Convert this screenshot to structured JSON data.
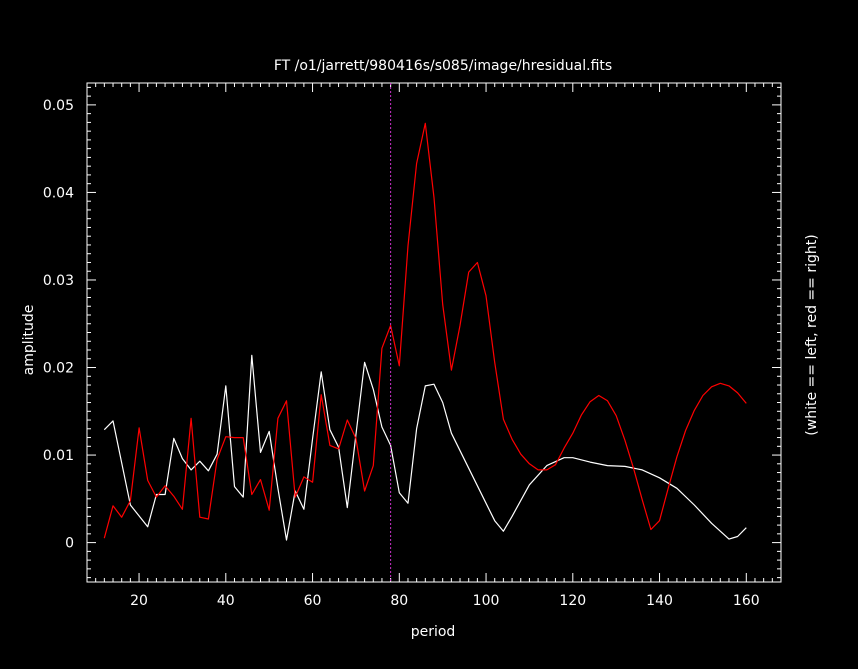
{
  "chart_data": {
    "type": "line",
    "title": "FT  /o1/jarrett/980416s/s085/image/hresidual.fits",
    "xlabel": "period",
    "ylabel": "amplitude",
    "right_label": "(white == left, red == right)",
    "xlim": [
      8,
      168
    ],
    "ylim": [
      -0.0045,
      0.0525
    ],
    "x_ticks": [
      20,
      40,
      60,
      80,
      100,
      120,
      140,
      160
    ],
    "x_tick_labels": [
      "20",
      "40",
      "60",
      "80",
      "100",
      "120",
      "140",
      "160"
    ],
    "y_ticks": [
      0,
      0.01,
      0.02,
      0.03,
      0.04,
      0.05
    ],
    "y_tick_labels": [
      "0",
      "0.01",
      "0.02",
      "0.03",
      "0.04",
      "0.05"
    ],
    "vline_x": 78,
    "colors": {
      "background": "#000000",
      "axes": "#ffffff",
      "vline": "#cc33cc"
    },
    "series": [
      {
        "color": "#ffffff",
        "points": [
          [
            12,
            0.0129
          ],
          [
            14,
            0.0139
          ],
          [
            18,
            0.0043
          ],
          [
            22,
            0.0018
          ],
          [
            24,
            0.0055
          ],
          [
            26,
            0.0055
          ],
          [
            28,
            0.0119
          ],
          [
            30,
            0.0096
          ],
          [
            32,
            0.0083
          ],
          [
            34,
            0.0093
          ],
          [
            36,
            0.0082
          ],
          [
            38,
            0.0101
          ],
          [
            40,
            0.0179
          ],
          [
            42,
            0.0064
          ],
          [
            44,
            0.0052
          ],
          [
            46,
            0.0214
          ],
          [
            48,
            0.0103
          ],
          [
            50,
            0.0127
          ],
          [
            52,
            0.0062
          ],
          [
            54,
            0.0003
          ],
          [
            56,
            0.0059
          ],
          [
            58,
            0.0038
          ],
          [
            60,
            0.0119
          ],
          [
            62,
            0.0195
          ],
          [
            64,
            0.0129
          ],
          [
            66,
            0.0109
          ],
          [
            68,
            0.004
          ],
          [
            70,
            0.0123
          ],
          [
            72,
            0.0206
          ],
          [
            74,
            0.0175
          ],
          [
            76,
            0.0132
          ],
          [
            78,
            0.0111
          ],
          [
            80,
            0.0057
          ],
          [
            82,
            0.0045
          ],
          [
            84,
            0.013
          ],
          [
            86,
            0.0179
          ],
          [
            88,
            0.0181
          ],
          [
            90,
            0.016
          ],
          [
            92,
            0.0125
          ],
          [
            96,
            0.0085
          ],
          [
            100,
            0.0045
          ],
          [
            102,
            0.0025
          ],
          [
            104,
            0.0013
          ],
          [
            106,
            0.003
          ],
          [
            110,
            0.0066
          ],
          [
            114,
            0.0088
          ],
          [
            118,
            0.0097
          ],
          [
            120,
            0.0097
          ],
          [
            124,
            0.0092
          ],
          [
            128,
            0.0088
          ],
          [
            132,
            0.0087
          ],
          [
            136,
            0.0083
          ],
          [
            140,
            0.0074
          ],
          [
            144,
            0.0062
          ],
          [
            148,
            0.0043
          ],
          [
            152,
            0.0022
          ],
          [
            156,
            0.0004
          ],
          [
            158,
            0.0007
          ],
          [
            160,
            0.0017
          ]
        ]
      },
      {
        "color": "#ff0000",
        "points": [
          [
            12,
            0.0005
          ],
          [
            14,
            0.0042
          ],
          [
            16,
            0.0029
          ],
          [
            18,
            0.0048
          ],
          [
            20,
            0.0131
          ],
          [
            22,
            0.0071
          ],
          [
            24,
            0.0052
          ],
          [
            26,
            0.0065
          ],
          [
            28,
            0.0053
          ],
          [
            30,
            0.0038
          ],
          [
            32,
            0.0142
          ],
          [
            34,
            0.0029
          ],
          [
            36,
            0.0027
          ],
          [
            38,
            0.0095
          ],
          [
            40,
            0.0121
          ],
          [
            42,
            0.012
          ],
          [
            44,
            0.012
          ],
          [
            46,
            0.0055
          ],
          [
            48,
            0.0072
          ],
          [
            50,
            0.0037
          ],
          [
            52,
            0.0142
          ],
          [
            54,
            0.0162
          ],
          [
            56,
            0.0052
          ],
          [
            58,
            0.0075
          ],
          [
            60,
            0.0069
          ],
          [
            62,
            0.0169
          ],
          [
            64,
            0.0111
          ],
          [
            66,
            0.0107
          ],
          [
            68,
            0.014
          ],
          [
            70,
            0.0119
          ],
          [
            72,
            0.0059
          ],
          [
            74,
            0.0088
          ],
          [
            76,
            0.0222
          ],
          [
            78,
            0.0248
          ],
          [
            80,
            0.0202
          ],
          [
            82,
            0.0339
          ],
          [
            84,
            0.0433
          ],
          [
            86,
            0.0479
          ],
          [
            88,
            0.0394
          ],
          [
            90,
            0.0272
          ],
          [
            92,
            0.0197
          ],
          [
            94,
            0.0248
          ],
          [
            96,
            0.0309
          ],
          [
            98,
            0.032
          ],
          [
            100,
            0.0282
          ],
          [
            102,
            0.0206
          ],
          [
            104,
            0.0141
          ],
          [
            106,
            0.0118
          ],
          [
            108,
            0.0101
          ],
          [
            110,
            0.009
          ],
          [
            112,
            0.0083
          ],
          [
            114,
            0.0083
          ],
          [
            116,
            0.0089
          ],
          [
            118,
            0.0108
          ],
          [
            120,
            0.0125
          ],
          [
            122,
            0.0146
          ],
          [
            124,
            0.0161
          ],
          [
            126,
            0.0168
          ],
          [
            128,
            0.0162
          ],
          [
            130,
            0.0145
          ],
          [
            132,
            0.0117
          ],
          [
            134,
            0.0085
          ],
          [
            136,
            0.0049
          ],
          [
            138,
            0.0015
          ],
          [
            140,
            0.0025
          ],
          [
            142,
            0.0062
          ],
          [
            144,
            0.0098
          ],
          [
            146,
            0.0128
          ],
          [
            148,
            0.0151
          ],
          [
            150,
            0.0168
          ],
          [
            152,
            0.0178
          ],
          [
            154,
            0.0182
          ],
          [
            156,
            0.0179
          ],
          [
            158,
            0.0171
          ],
          [
            160,
            0.0159
          ]
        ]
      }
    ]
  }
}
